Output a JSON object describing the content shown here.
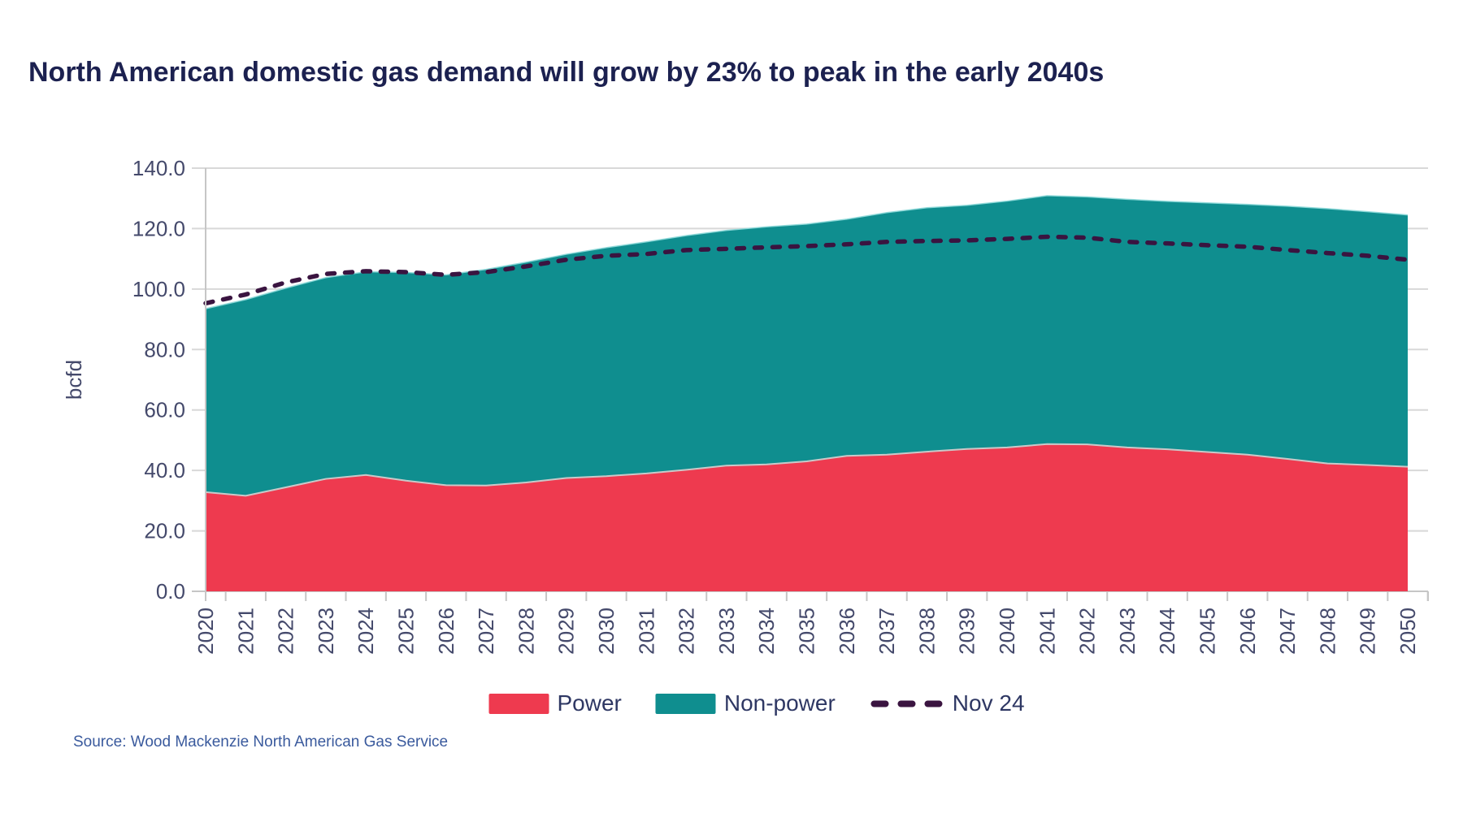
{
  "title": {
    "text": "North American domestic gas demand will grow by 23% to peak in the early 2040s"
  },
  "source": {
    "text": "Source: Wood Mackenzie North American Gas Service"
  },
  "colors": {
    "title_text": "#1c2150",
    "axis_label_text": "#44496b",
    "gridline": "#d8d8d8",
    "axis_line": "#c6c6c6",
    "power_area": "#ee3a4f",
    "power_top_border": "#c9c9c9",
    "nonpower_area": "#0f8e8f",
    "nonpower_top_border": "#8ed9d9",
    "nov24_line": "#3a1440",
    "source_text": "#3a5a9d",
    "legend_text": "#2e3763",
    "background": "#ffffff"
  },
  "chart_data": {
    "type": "area",
    "stacked": true,
    "title": "North American domestic gas demand will grow by 23% to peak in the early 2040s",
    "xlabel": "",
    "ylabel": "bcfd",
    "ylim": [
      0,
      140
    ],
    "ytick_step": 20,
    "ytick_labels": [
      "0.0",
      "20.0",
      "40.0",
      "60.0",
      "80.0",
      "100.0",
      "120.0",
      "140.0"
    ],
    "grid": "horizontal",
    "legend_position": "bottom",
    "categories": [
      "2020",
      "2021",
      "2022",
      "2023",
      "2024",
      "2025",
      "2026",
      "2027",
      "2028",
      "2029",
      "2030",
      "2031",
      "2032",
      "2033",
      "2034",
      "2035",
      "2036",
      "2037",
      "2038",
      "2039",
      "2040",
      "2041",
      "2042",
      "2043",
      "2044",
      "2045",
      "2046",
      "2047",
      "2048",
      "2049",
      "2050"
    ],
    "series": [
      {
        "name": "Power",
        "type": "area",
        "color": "#ee3a4f",
        "values": [
          32.8,
          31.6,
          34.4,
          37.2,
          38.5,
          36.6,
          35.1,
          35.0,
          36.0,
          37.5,
          38.1,
          39.0,
          40.2,
          41.6,
          42.0,
          43.0,
          44.8,
          45.2,
          46.2,
          47.1,
          47.6,
          48.7,
          48.6,
          47.6,
          47.0,
          46.1,
          45.2,
          43.8,
          42.3,
          41.8,
          41.2
        ]
      },
      {
        "name": "Non-power",
        "type": "area",
        "color": "#0f8e8f",
        "values": [
          60.7,
          64.9,
          65.9,
          66.6,
          67.2,
          68.9,
          69.6,
          71.5,
          72.9,
          74.0,
          75.6,
          76.6,
          77.5,
          77.8,
          78.6,
          78.5,
          78.3,
          80.1,
          80.7,
          80.6,
          81.5,
          82.2,
          81.9,
          82.1,
          82.0,
          82.4,
          82.8,
          83.6,
          84.3,
          83.8,
          83.3
        ]
      },
      {
        "name": "Nov 24",
        "type": "dashed-line",
        "color": "#3a1440",
        "values": [
          95.3,
          98.2,
          102.2,
          105.0,
          105.9,
          105.6,
          104.7,
          105.6,
          107.5,
          109.7,
          111.0,
          111.6,
          112.9,
          113.3,
          113.8,
          114.2,
          114.8,
          115.6,
          115.9,
          116.1,
          116.6,
          117.3,
          117.0,
          115.6,
          115.1,
          114.5,
          114.0,
          112.9,
          111.9,
          111.0,
          109.7
        ]
      }
    ]
  }
}
